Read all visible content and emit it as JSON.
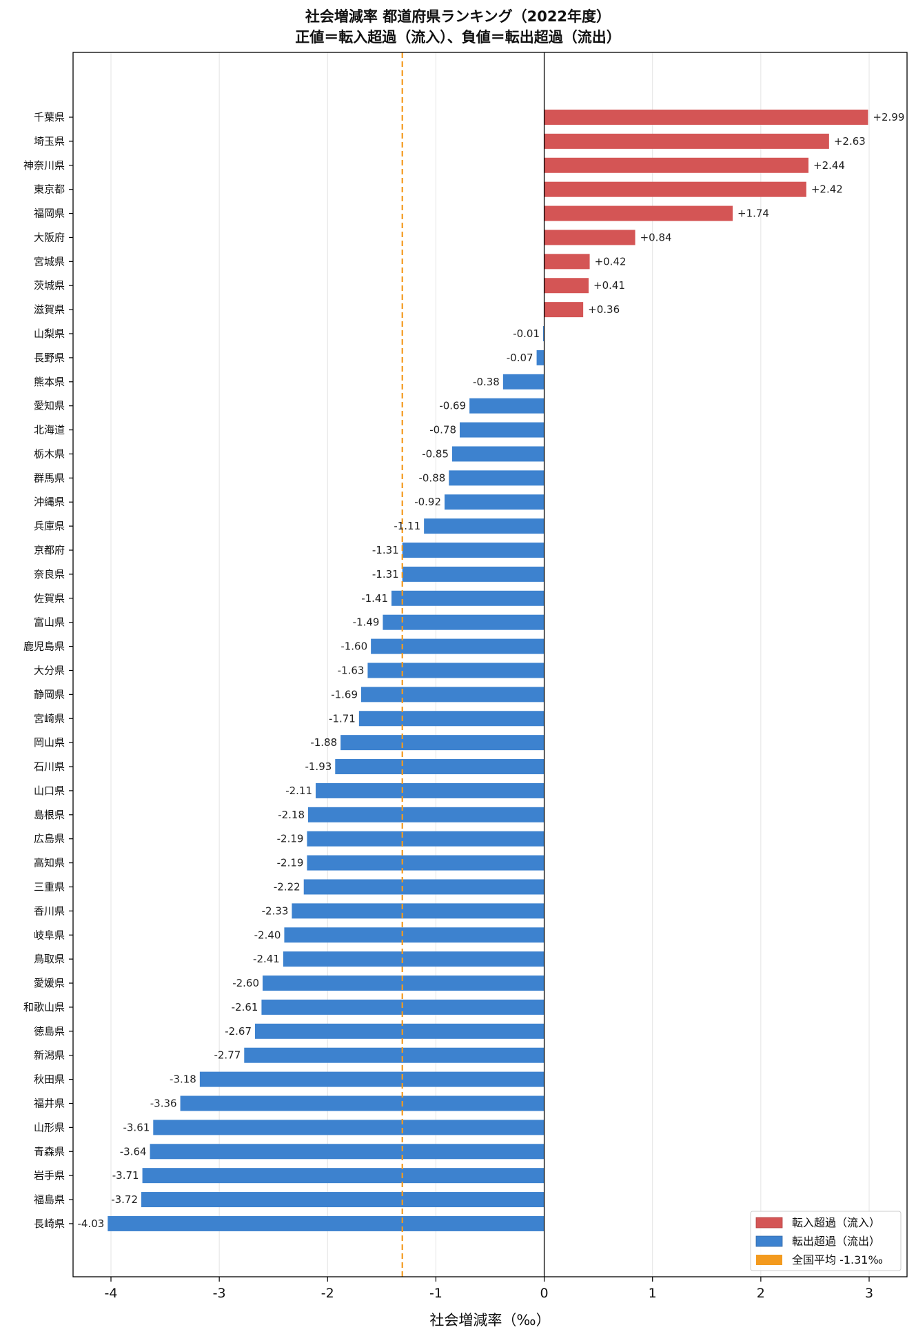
{
  "chart_data": {
    "type": "bar",
    "orientation": "horizontal",
    "title": [
      "社会増減率 都道府県ランキング（2022年度）",
      "正値＝転入超過（流入）、負値＝転出超過（流出）"
    ],
    "xlabel": "社会増減率（‰）",
    "ylabel": "",
    "xlim": [
      -4.35,
      3.35
    ],
    "xticks": [
      -4,
      -3,
      -2,
      -1,
      0,
      1,
      2,
      3
    ],
    "xtick_labels": [
      "-4",
      "-3",
      "-2",
      "-1",
      "0",
      "1",
      "2",
      "3"
    ],
    "grid": "vertical",
    "legend_placement": "bottom-right",
    "legend": [
      "転入超過（流入）",
      "転出超過（流出）",
      "全国平均 -1.31‰"
    ],
    "national_average": -1.31,
    "colors": {
      "positive": "#d45555",
      "negative": "#3d82cf",
      "average": "#f39a1e"
    },
    "categories": [
      "千葉県",
      "埼玉県",
      "神奈川県",
      "東京都",
      "福岡県",
      "大阪府",
      "宮城県",
      "茨城県",
      "滋賀県",
      "山梨県",
      "長野県",
      "熊本県",
      "愛知県",
      "北海道",
      "栃木県",
      "群馬県",
      "沖縄県",
      "兵庫県",
      "京都府",
      "奈良県",
      "佐賀県",
      "富山県",
      "鹿児島県",
      "大分県",
      "静岡県",
      "宮崎県",
      "岡山県",
      "石川県",
      "山口県",
      "島根県",
      "広島県",
      "高知県",
      "三重県",
      "香川県",
      "岐阜県",
      "鳥取県",
      "愛媛県",
      "和歌山県",
      "徳島県",
      "新潟県",
      "秋田県",
      "福井県",
      "山形県",
      "青森県",
      "岩手県",
      "福島県",
      "長崎県"
    ],
    "values": [
      2.99,
      2.63,
      2.44,
      2.42,
      1.74,
      0.84,
      0.42,
      0.41,
      0.36,
      -0.01,
      -0.07,
      -0.38,
      -0.69,
      -0.78,
      -0.85,
      -0.88,
      -0.92,
      -1.11,
      -1.31,
      -1.31,
      -1.41,
      -1.49,
      -1.6,
      -1.63,
      -1.69,
      -1.71,
      -1.88,
      -1.93,
      -2.11,
      -2.18,
      -2.19,
      -2.19,
      -2.22,
      -2.33,
      -2.4,
      -2.41,
      -2.6,
      -2.61,
      -2.67,
      -2.77,
      -3.18,
      -3.36,
      -3.61,
      -3.64,
      -3.71,
      -3.72,
      -4.03
    ],
    "value_labels": [
      "+2.99",
      "+2.63",
      "+2.44",
      "+2.42",
      "+1.74",
      "+0.84",
      "+0.42",
      "+0.41",
      "+0.36",
      "-0.01",
      "-0.07",
      "-0.38",
      "-0.69",
      "-0.78",
      "-0.85",
      "-0.88",
      "-0.92",
      "-1.11",
      "-1.31",
      "-1.31",
      "-1.41",
      "-1.49",
      "-1.60",
      "-1.63",
      "-1.69",
      "-1.71",
      "-1.88",
      "-1.93",
      "-2.11",
      "-2.18",
      "-2.19",
      "-2.19",
      "-2.22",
      "-2.33",
      "-2.40",
      "-2.41",
      "-2.60",
      "-2.61",
      "-2.67",
      "-2.77",
      "-3.18",
      "-3.36",
      "-3.61",
      "-3.64",
      "-3.71",
      "-3.72",
      "-4.03"
    ]
  }
}
